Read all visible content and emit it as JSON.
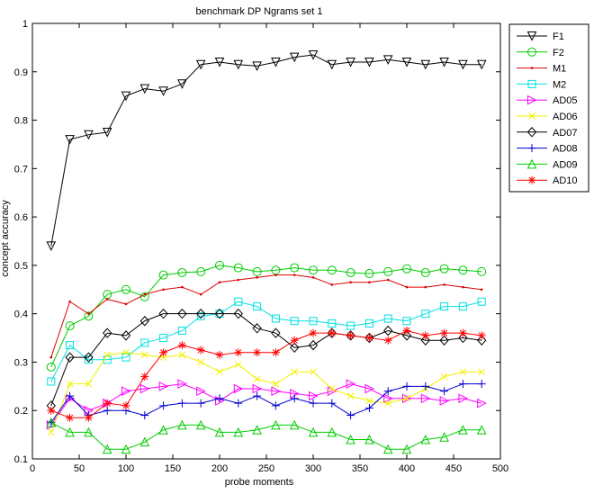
{
  "chart_data": {
    "type": "line",
    "title": "benchmark DP Ngrams set 1",
    "xlabel": "probe moments",
    "ylabel": "concept accuracy",
    "xlim": [
      0,
      500
    ],
    "ylim": [
      0.1,
      1
    ],
    "xticks": [
      "0",
      "50",
      "100",
      "150",
      "200",
      "250",
      "300",
      "350",
      "400",
      "450",
      "500"
    ],
    "yticks": [
      "0.1",
      "0.2",
      "0.3",
      "0.4",
      "0.5",
      "0.6",
      "0.7",
      "0.8",
      "0.9",
      "1"
    ],
    "grid": false,
    "legend_position": "outside-top-right",
    "x": [
      20,
      40,
      60,
      80,
      100,
      120,
      140,
      160,
      180,
      200,
      220,
      240,
      260,
      280,
      300,
      320,
      340,
      360,
      380,
      400,
      420,
      440,
      460,
      480
    ],
    "series": [
      {
        "name": "F1",
        "color": "#000000",
        "marker": "triangle-down",
        "values": [
          0.54,
          0.76,
          0.77,
          0.775,
          0.85,
          0.865,
          0.86,
          0.875,
          0.915,
          0.92,
          0.915,
          0.912,
          0.92,
          0.93,
          0.935,
          0.915,
          0.92,
          0.92,
          0.925,
          0.92,
          0.915,
          0.92,
          0.915,
          0.915
        ]
      },
      {
        "name": "F2",
        "color": "#00cc00",
        "marker": "circle",
        "values": [
          0.29,
          0.375,
          0.395,
          0.44,
          0.45,
          0.435,
          0.48,
          0.485,
          0.487,
          0.5,
          0.495,
          0.487,
          0.49,
          0.495,
          0.49,
          0.49,
          0.485,
          0.483,
          0.487,
          0.493,
          0.485,
          0.493,
          0.49,
          0.487
        ]
      },
      {
        "name": "M1",
        "color": "#e00000",
        "marker": "dot",
        "values": [
          0.31,
          0.425,
          0.4,
          0.43,
          0.42,
          0.44,
          0.45,
          0.455,
          0.44,
          0.465,
          0.47,
          0.475,
          0.48,
          0.48,
          0.475,
          0.46,
          0.465,
          0.465,
          0.47,
          0.455,
          0.455,
          0.46,
          0.455,
          0.45
        ]
      },
      {
        "name": "M2",
        "color": "#00e0e0",
        "marker": "square",
        "values": [
          0.26,
          0.335,
          0.305,
          0.305,
          0.31,
          0.34,
          0.35,
          0.365,
          0.395,
          0.4,
          0.425,
          0.415,
          0.39,
          0.385,
          0.385,
          0.38,
          0.375,
          0.38,
          0.39,
          0.385,
          0.4,
          0.415,
          0.415,
          0.425
        ]
      },
      {
        "name": "AD05",
        "color": "#ff00ff",
        "marker": "triangle-right",
        "values": [
          0.17,
          0.225,
          0.2,
          0.215,
          0.24,
          0.245,
          0.25,
          0.255,
          0.24,
          0.22,
          0.245,
          0.245,
          0.24,
          0.235,
          0.23,
          0.24,
          0.255,
          0.245,
          0.225,
          0.225,
          0.225,
          0.22,
          0.225,
          0.215
        ]
      },
      {
        "name": "AD06",
        "color": "#f0f000",
        "marker": "x",
        "values": [
          0.155,
          0.255,
          0.255,
          0.315,
          0.32,
          0.315,
          0.31,
          0.315,
          0.3,
          0.28,
          0.295,
          0.265,
          0.255,
          0.28,
          0.28,
          0.245,
          0.23,
          0.22,
          0.215,
          0.225,
          0.245,
          0.27,
          0.28,
          0.28
        ]
      },
      {
        "name": "AD07",
        "color": "#000000",
        "marker": "diamond",
        "values": [
          0.21,
          0.31,
          0.31,
          0.36,
          0.355,
          0.385,
          0.4,
          0.4,
          0.4,
          0.4,
          0.4,
          0.37,
          0.36,
          0.33,
          0.335,
          0.36,
          0.355,
          0.35,
          0.365,
          0.355,
          0.345,
          0.345,
          0.35,
          0.345
        ]
      },
      {
        "name": "AD08",
        "color": "#0000cc",
        "marker": "plus",
        "values": [
          0.175,
          0.23,
          0.19,
          0.2,
          0.2,
          0.19,
          0.21,
          0.215,
          0.215,
          0.225,
          0.215,
          0.23,
          0.21,
          0.225,
          0.215,
          0.215,
          0.19,
          0.205,
          0.24,
          0.25,
          0.25,
          0.24,
          0.255,
          0.255
        ]
      },
      {
        "name": "AD09",
        "color": "#00cc00",
        "marker": "triangle-up",
        "values": [
          0.175,
          0.155,
          0.155,
          0.12,
          0.12,
          0.135,
          0.16,
          0.17,
          0.17,
          0.155,
          0.155,
          0.16,
          0.17,
          0.17,
          0.155,
          0.155,
          0.14,
          0.14,
          0.12,
          0.12,
          0.14,
          0.145,
          0.16,
          0.16
        ]
      },
      {
        "name": "AD10",
        "color": "#ff0000",
        "marker": "asterisk",
        "values": [
          0.2,
          0.185,
          0.185,
          0.215,
          0.21,
          0.27,
          0.32,
          0.335,
          0.325,
          0.315,
          0.32,
          0.32,
          0.32,
          0.345,
          0.36,
          0.36,
          0.355,
          0.35,
          0.345,
          0.365,
          0.355,
          0.36,
          0.36,
          0.355
        ]
      }
    ]
  }
}
